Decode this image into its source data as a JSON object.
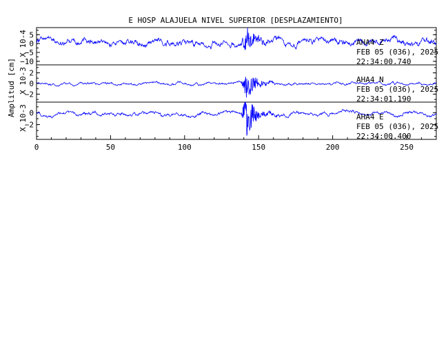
{
  "chart_data": {
    "type": "line",
    "title": "E HOSP ALAJUELA NIVEL SUPERIOR [DESPLAZAMIENTO]",
    "ylabel": "Amplitud [cm]",
    "xlabel": "",
    "xlim": [
      0,
      270
    ],
    "x_ticks": [
      0,
      50,
      100,
      150,
      200,
      250
    ],
    "trace_color": "#0000ff",
    "grid": false,
    "panels": [
      {
        "scale_label": "X 10-4",
        "ylim": [
          -12,
          9
        ],
        "y_ticks": [
          5,
          0,
          -5,
          -10
        ],
        "station": "AHA4  Z",
        "date": "FEB 05 (036), 2025",
        "time": "22:34:00.740",
        "baseline": 1.0,
        "noise_amplitude": 3.5,
        "event_amplitude": 7.0,
        "event_start": 138,
        "event_end": 165,
        "event_peak": 142
      },
      {
        "scale_label": "X 10-3",
        "ylim": [
          -3.5,
          3.5
        ],
        "y_ticks": [
          2,
          0,
          -2
        ],
        "station": "AHA4  N",
        "date": "FEB 05 (036), 2025",
        "time": "22:34:01.190",
        "baseline": 0.0,
        "noise_amplitude": 0.45,
        "event_amplitude": 2.9,
        "event_start": 138,
        "event_end": 165,
        "event_peak": 142
      },
      {
        "scale_label": "X 10-3",
        "ylim": [
          -4.5,
          1.8
        ],
        "y_ticks": [
          0,
          -2
        ],
        "station": "AHA4  E",
        "date": "FEB 05 (036), 2025",
        "time": "22:34:00.400",
        "baseline": -0.2,
        "noise_amplitude": 0.55,
        "event_amplitude": 3.4,
        "event_start": 138,
        "event_end": 165,
        "event_peak": 142
      }
    ]
  }
}
